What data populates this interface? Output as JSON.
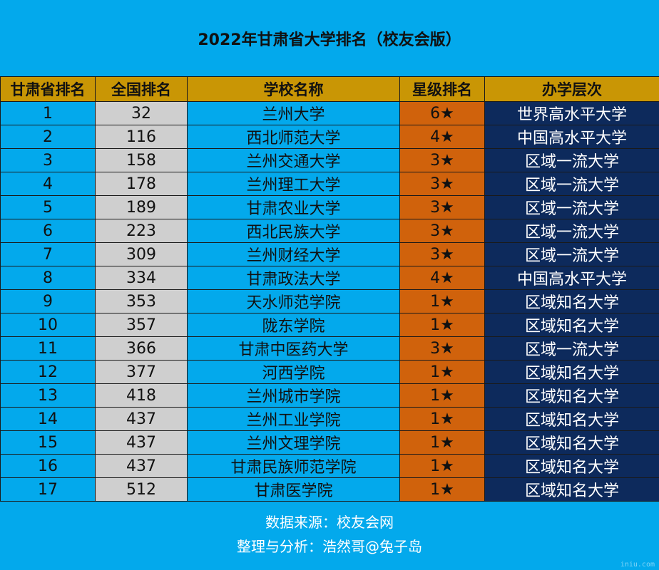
{
  "title": "2022年甘肃省大学排名（校友会版）",
  "colors": {
    "background": "#03a9ec",
    "header": "#c99605",
    "national_rank_col": "#cfcfcf",
    "star_col": "#d0620c",
    "level_col": "#0d2a5c"
  },
  "table": {
    "headers": [
      "甘肃省排名",
      "全国排名",
      "学校名称",
      "星级排名",
      "办学层次"
    ],
    "rows": [
      {
        "prov": "1",
        "nat": "32",
        "name": "兰州大学",
        "star": "6★",
        "level": "世界高水平大学"
      },
      {
        "prov": "2",
        "nat": "116",
        "name": "西北师范大学",
        "star": "4★",
        "level": "中国高水平大学"
      },
      {
        "prov": "3",
        "nat": "158",
        "name": "兰州交通大学",
        "star": "3★",
        "level": "区域一流大学"
      },
      {
        "prov": "4",
        "nat": "178",
        "name": "兰州理工大学",
        "star": "3★",
        "level": "区域一流大学"
      },
      {
        "prov": "5",
        "nat": "189",
        "name": "甘肃农业大学",
        "star": "3★",
        "level": "区域一流大学"
      },
      {
        "prov": "6",
        "nat": "223",
        "name": "西北民族大学",
        "star": "3★",
        "level": "区域一流大学"
      },
      {
        "prov": "7",
        "nat": "309",
        "name": "兰州财经大学",
        "star": "3★",
        "level": "区域一流大学"
      },
      {
        "prov": "8",
        "nat": "334",
        "name": "甘肃政法大学",
        "star": "4★",
        "level": "中国高水平大学"
      },
      {
        "prov": "9",
        "nat": "353",
        "name": "天水师范学院",
        "star": "1★",
        "level": "区域知名大学"
      },
      {
        "prov": "10",
        "nat": "357",
        "name": "陇东学院",
        "star": "1★",
        "level": "区域知名大学"
      },
      {
        "prov": "11",
        "nat": "366",
        "name": "甘肃中医药大学",
        "star": "3★",
        "level": "区域一流大学"
      },
      {
        "prov": "12",
        "nat": "377",
        "name": "河西学院",
        "star": "1★",
        "level": "区域知名大学"
      },
      {
        "prov": "13",
        "nat": "418",
        "name": "兰州城市学院",
        "star": "1★",
        "level": "区域知名大学"
      },
      {
        "prov": "14",
        "nat": "437",
        "name": "兰州工业学院",
        "star": "1★",
        "level": "区域知名大学"
      },
      {
        "prov": "15",
        "nat": "437",
        "name": "兰州文理学院",
        "star": "1★",
        "level": "区域知名大学"
      },
      {
        "prov": "16",
        "nat": "437",
        "name": "甘肃民族师范学院",
        "star": "1★",
        "level": "区域知名大学"
      },
      {
        "prov": "17",
        "nat": "512",
        "name": "甘肃医学院",
        "star": "1★",
        "level": "区域知名大学"
      }
    ]
  },
  "footer": {
    "source": "数据来源：校友会网",
    "analysis": "整理与分析：浩然哥@兔子岛"
  },
  "watermark": "iniu.com"
}
